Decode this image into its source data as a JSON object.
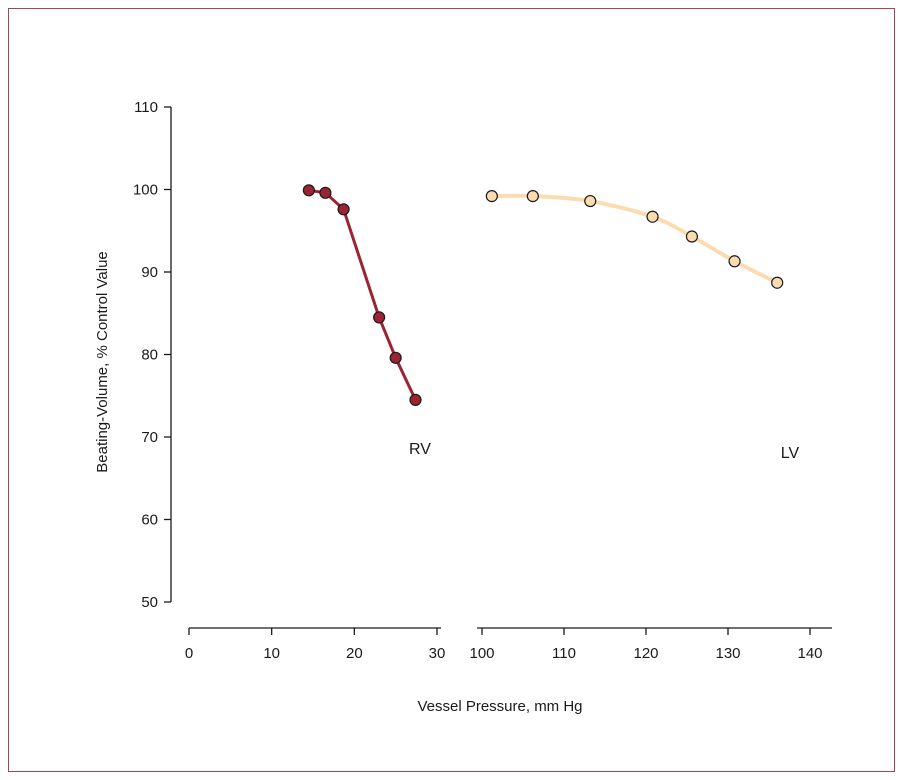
{
  "chart_data": {
    "type": "scatter",
    "xlabel": "Vessel Pressure, mm Hg",
    "ylabel": "Beating-Volume, % Control Value",
    "ylim": [
      50,
      110
    ],
    "yticks": [
      50,
      60,
      70,
      80,
      90,
      100,
      110
    ],
    "axis_segments": [
      {
        "xlim": [
          0,
          30
        ],
        "xticks": [
          0,
          10,
          20,
          30
        ]
      },
      {
        "xlim": [
          100,
          140
        ],
        "xticks": [
          100,
          110,
          120,
          130,
          140
        ]
      }
    ],
    "grid": false,
    "series": [
      {
        "name": "RV",
        "segment": 0,
        "color": "#9b2333",
        "line_color": "#9b2333",
        "x": [
          14.5,
          16.5,
          18.7,
          23.0,
          25.0,
          27.4
        ],
        "y": [
          99.9,
          99.6,
          97.6,
          84.5,
          79.6,
          74.5
        ]
      },
      {
        "name": "LV",
        "segment": 1,
        "color": "#fbdcb0",
        "line_color": "#fbdcb0",
        "x": [
          101.2,
          106.2,
          113.2,
          120.8,
          125.6,
          130.8,
          136.0
        ],
        "y": [
          99.2,
          99.2,
          98.6,
          96.7,
          94.3,
          91.3,
          88.7
        ]
      }
    ]
  }
}
